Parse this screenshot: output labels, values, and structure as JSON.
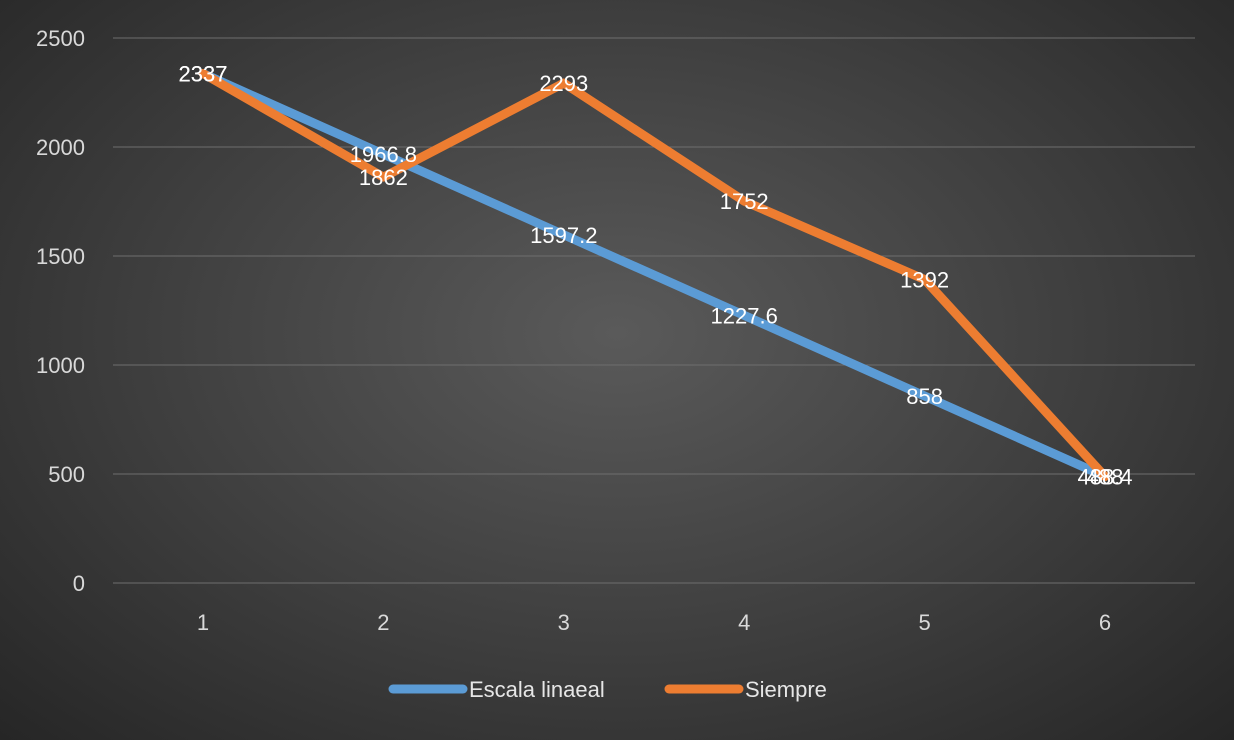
{
  "chart_data": {
    "type": "line",
    "title": "",
    "xlabel": "",
    "ylabel": "",
    "x": [
      "1",
      "2",
      "3",
      "4",
      "5",
      "6"
    ],
    "ylim": [
      0,
      2500
    ],
    "yticks": [
      0,
      500,
      1000,
      1500,
      2000,
      2500
    ],
    "ytick_labels": [
      "0",
      "500",
      "1000",
      "1500",
      "2000",
      "2500"
    ],
    "grid": true,
    "legend_position": "bottom",
    "series": [
      {
        "name": "Escala linaeal",
        "color": "#5b9bd5",
        "values": [
          2337,
          1966.8,
          1597.2,
          1227.6,
          858,
          488.4
        ],
        "labels": [
          "2337",
          "1966.8",
          "1597.2",
          "1227.6",
          "858",
          "488.4"
        ]
      },
      {
        "name": "Siempre",
        "color": "#ed7d31",
        "values": [
          2337,
          1862,
          2293,
          1752,
          1392,
          488
        ],
        "labels": [
          "2337",
          "1862",
          "2293",
          "1752",
          "1392",
          "488"
        ]
      }
    ]
  }
}
